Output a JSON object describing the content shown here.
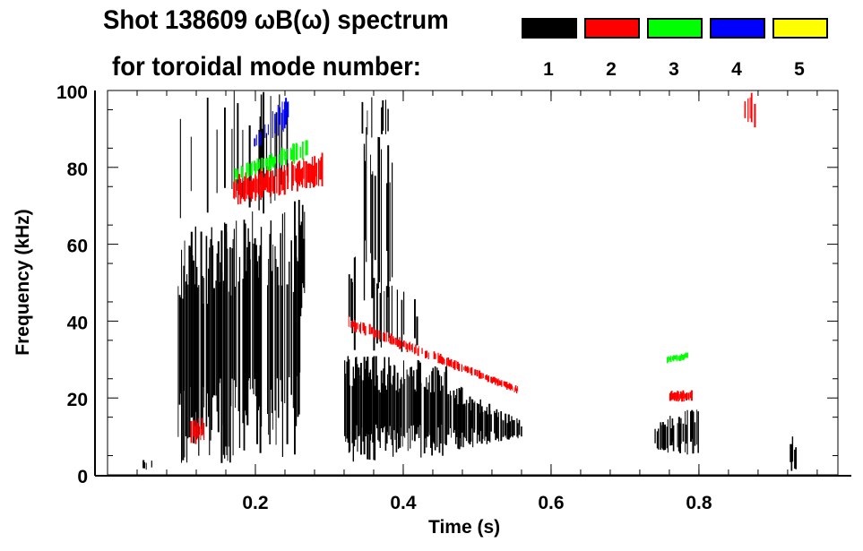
{
  "chart_data": {
    "type": "heatmap",
    "title": "Shot 138609 ωB(ω) spectrum",
    "subtitle": "for toroidal mode number:",
    "xlabel": "Time (s)",
    "ylabel": "Frequency (kHz)",
    "xlim": [
      0,
      0.988
    ],
    "ylim": [
      0,
      100
    ],
    "xticks": [
      "0.2",
      "0.4",
      "0.6",
      "0.8"
    ],
    "xtick_values": [
      0.2,
      0.4,
      0.6,
      0.8
    ],
    "yticks": [
      "0",
      "20",
      "40",
      "60",
      "80",
      "100"
    ],
    "ytick_values": [
      0,
      20,
      40,
      60,
      80,
      100
    ],
    "legend": [
      {
        "label": "1",
        "color": "#000000"
      },
      {
        "label": "2",
        "color": "#ff0000"
      },
      {
        "label": "3",
        "color": "#00ff00"
      },
      {
        "label": "4",
        "color": "#0000ff"
      },
      {
        "label": "5",
        "color": "#ffff00"
      }
    ],
    "legend_position": "top-right",
    "features": [
      {
        "mode": 1,
        "t": [
          0.095,
          0.26
        ],
        "f_low": [
          3,
          3
        ],
        "f_high": [
          64,
          72
        ],
        "density": 0.85
      },
      {
        "mode": 1,
        "t": [
          0.26,
          0.27
        ],
        "f_low": [
          40,
          40
        ],
        "f_high": [
          72,
          74
        ],
        "density": 0.7
      },
      {
        "mode": 1,
        "t": [
          0.095,
          0.245
        ],
        "f_low": [
          60,
          70
        ],
        "f_high": [
          100,
          100
        ],
        "density": 0.18
      },
      {
        "mode": 1,
        "t": [
          0.32,
          0.46
        ],
        "f_low": [
          3,
          5
        ],
        "f_high": [
          32,
          29
        ],
        "density": 0.95
      },
      {
        "mode": 1,
        "t": [
          0.46,
          0.56
        ],
        "f_low": [
          6,
          9
        ],
        "f_high": [
          25,
          14
        ],
        "density": 0.85
      },
      {
        "mode": 1,
        "t": [
          0.32,
          0.42
        ],
        "f_low": [
          32,
          32
        ],
        "f_high": [
          60,
          45
        ],
        "density": 0.2
      },
      {
        "mode": 1,
        "t": [
          0.345,
          0.385
        ],
        "f_low": [
          45,
          45
        ],
        "f_high": [
          92,
          85
        ],
        "density": 0.6
      },
      {
        "mode": 1,
        "t": [
          0.335,
          0.38
        ],
        "f_low": [
          85,
          85
        ],
        "f_high": [
          100,
          100
        ],
        "density": 0.25
      },
      {
        "mode": 1,
        "t": [
          0.74,
          0.8
        ],
        "f_low": [
          6,
          5
        ],
        "f_high": [
          14,
          18
        ],
        "density": 0.8
      },
      {
        "mode": 1,
        "t": [
          0.92,
          0.935
        ],
        "f_low": [
          0,
          0
        ],
        "f_high": [
          10,
          10
        ],
        "density": 0.3
      },
      {
        "mode": 1,
        "t": [
          0.03,
          0.06
        ],
        "f_low": [
          1,
          1
        ],
        "f_high": [
          4,
          4
        ],
        "density": 0.2
      },
      {
        "mode": 2,
        "t": [
          0.17,
          0.29
        ],
        "f_low": [
          70,
          75
        ],
        "f_high": [
          78,
          84
        ],
        "density": 0.8
      },
      {
        "mode": 2,
        "t": [
          0.32,
          0.555
        ],
        "f_low": [
          38,
          21
        ],
        "f_high": [
          42,
          23
        ],
        "density": 0.7
      },
      {
        "mode": 2,
        "t": [
          0.76,
          0.79
        ],
        "f_low": [
          19,
          19
        ],
        "f_high": [
          22,
          22
        ],
        "density": 0.9
      },
      {
        "mode": 2,
        "t": [
          0.105,
          0.13
        ],
        "f_low": [
          8,
          8
        ],
        "f_high": [
          15,
          15
        ],
        "density": 0.6
      },
      {
        "mode": 2,
        "t": [
          0.86,
          0.875
        ],
        "f_low": [
          89,
          89
        ],
        "f_high": [
          100,
          100
        ],
        "density": 0.5
      },
      {
        "mode": 3,
        "t": [
          0.17,
          0.27
        ],
        "f_low": [
          76,
          82
        ],
        "f_high": [
          80,
          88
        ],
        "density": 0.75
      },
      {
        "mode": 3,
        "t": [
          0.755,
          0.785
        ],
        "f_low": [
          29,
          30
        ],
        "f_high": [
          31,
          32
        ],
        "density": 0.9
      },
      {
        "mode": 4,
        "t": [
          0.195,
          0.245
        ],
        "f_low": [
          84,
          90
        ],
        "f_high": [
          88,
          100
        ],
        "density": 0.35
      }
    ]
  }
}
